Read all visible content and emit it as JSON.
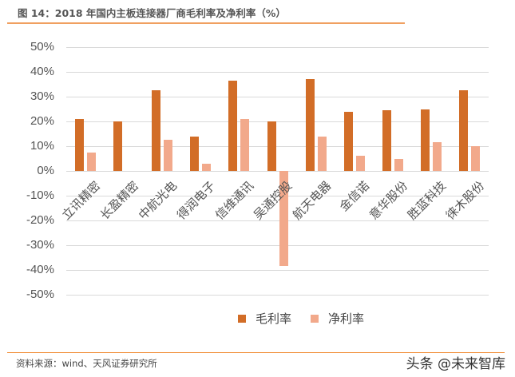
{
  "title": "图 14：2018 年国内主板连接器厂商毛利率及净利率（%）",
  "source": "资料来源：wind、天风证券研究所",
  "watermark": "头条 @未来智库",
  "colors": {
    "gross": "#d26d27",
    "net": "#f2a98b",
    "rule": "#f0a060"
  },
  "chart_data": {
    "type": "bar",
    "title": "2018 年国内主板连接器厂商毛利率及净利率（%）",
    "xlabel": "",
    "ylabel": "",
    "ylim": [
      -50,
      50
    ],
    "yticks": [
      "50%",
      "40%",
      "30%",
      "20%",
      "10%",
      "0%",
      "-10%",
      "-20%",
      "-30%",
      "-40%",
      "-50%"
    ],
    "grid": true,
    "legend_position": "bottom",
    "categories": [
      "立讯精密",
      "长盈精密",
      "中航光电",
      "得润电子",
      "信维通讯",
      "吴通控股",
      "航天电器",
      "金信诺",
      "意华股份",
      "胜蓝科技",
      "徕木股份"
    ],
    "series": [
      {
        "name": "毛利率",
        "values": [
          21,
          20,
          32.5,
          14,
          36.5,
          20,
          37,
          24,
          24.5,
          25,
          32.5
        ]
      },
      {
        "name": "净利率",
        "values": [
          7.5,
          0,
          12.5,
          3,
          21,
          -38.5,
          14,
          6,
          5,
          11.5,
          10
        ]
      }
    ]
  }
}
